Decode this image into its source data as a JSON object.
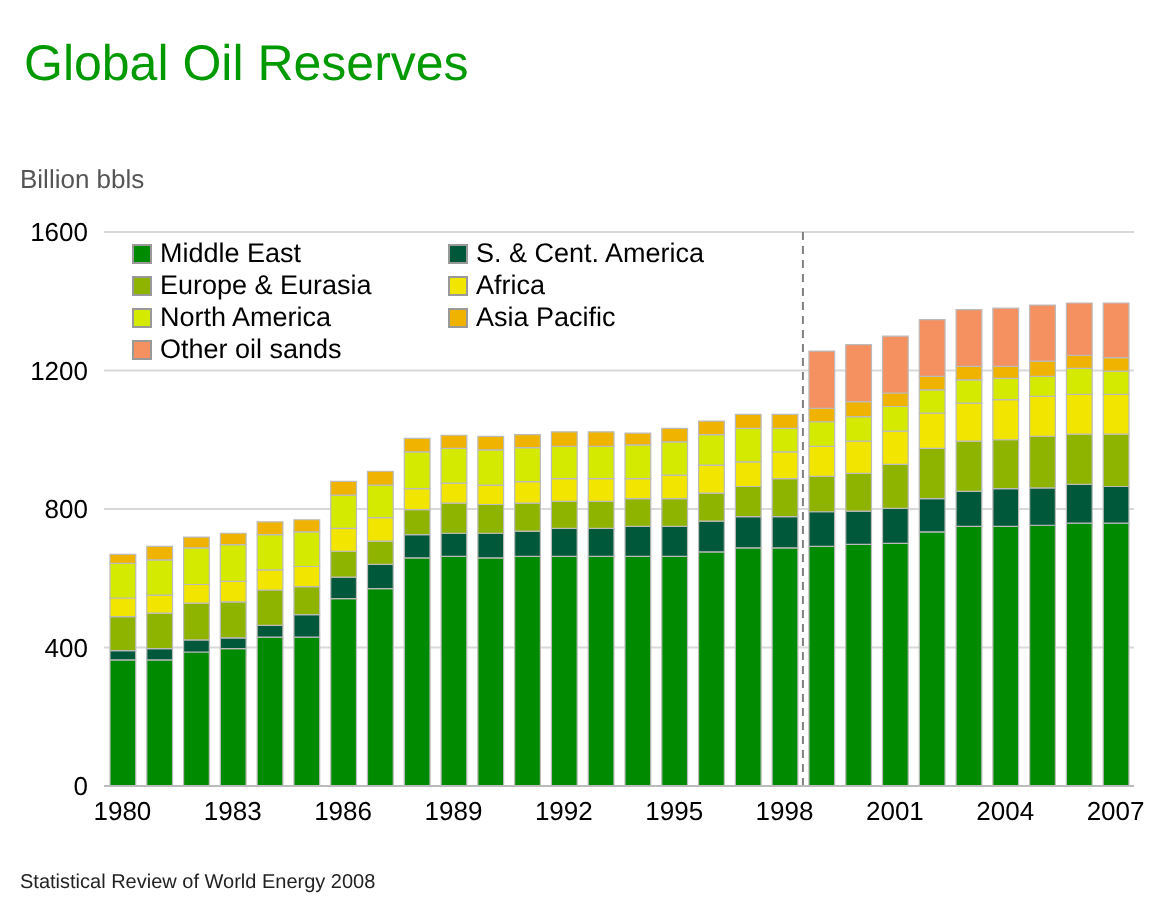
{
  "chart_data": {
    "type": "bar",
    "title": "Global Oil Reserves",
    "ylabel": "Billion bbls",
    "stacked": true,
    "grid": "y",
    "legend": "top left",
    "x": [
      1980,
      1981,
      1982,
      1983,
      1984,
      1985,
      1986,
      1987,
      1988,
      1989,
      1990,
      1991,
      1992,
      1993,
      1994,
      1995,
      1996,
      1997,
      1998,
      1999,
      2000,
      2001,
      2002,
      2003,
      2004,
      2005,
      2006,
      2007
    ],
    "xlim": [
      1979.5,
      2007.5
    ],
    "xticks": [
      1980,
      1983,
      1986,
      1989,
      1992,
      1995,
      1998,
      2001,
      2004,
      2007
    ],
    "ylim": [
      0,
      1600
    ],
    "yticks": [
      0,
      400,
      800,
      1200,
      1600
    ],
    "series": [
      {
        "name": "Middle East",
        "color": "#008a00",
        "values": [
          364,
          364,
          387,
          397,
          430,
          430,
          541,
          570,
          659,
          663,
          659,
          663,
          663,
          663,
          663,
          663,
          676,
          688,
          688,
          692,
          698,
          701,
          734,
          750,
          750,
          753,
          759,
          759
        ]
      },
      {
        "name": "S. & Cent. America",
        "color": "#00583a",
        "values": [
          27,
          33,
          35,
          31,
          34,
          65,
          62,
          70,
          67,
          67,
          71,
          73,
          81,
          81,
          87,
          87,
          89,
          90,
          90,
          100,
          96,
          101,
          96,
          101,
          109,
          108,
          112,
          106
        ]
      },
      {
        "name": "Europe & Eurasia",
        "color": "#8fb400",
        "values": [
          98,
          102,
          106,
          104,
          102,
          81,
          75,
          67,
          72,
          87,
          83,
          81,
          78,
          78,
          80,
          80,
          81,
          87,
          110,
          102,
          109,
          127,
          145,
          145,
          141,
          149,
          145,
          151
        ]
      },
      {
        "name": "Africa",
        "color": "#f2e600",
        "values": [
          54,
          52,
          54,
          59,
          58,
          58,
          66,
          68,
          61,
          58,
          56,
          62,
          66,
          66,
          58,
          68,
          81,
          71,
          77,
          87,
          93,
          96,
          102,
          110,
          116,
          115,
          115,
          115
        ]
      },
      {
        "name": "North America",
        "color": "#d4ea00",
        "values": [
          100,
          102,
          106,
          106,
          102,
          100,
          96,
          94,
          106,
          100,
          102,
          98,
          93,
          93,
          97,
          96,
          88,
          97,
          68,
          71,
          71,
          71,
          67,
          67,
          61,
          58,
          75,
          67
        ]
      },
      {
        "name": "Asia Pacific",
        "color": "#f0b400",
        "values": [
          26,
          39,
          31,
          33,
          37,
          35,
          40,
          40,
          39,
          38,
          39,
          38,
          42,
          42,
          34,
          39,
          39,
          40,
          40,
          39,
          43,
          39,
          39,
          39,
          35,
          44,
          38,
          39
        ]
      },
      {
        "name": "Other oil sands",
        "color": "#f59060",
        "values": [
          null,
          null,
          null,
          null,
          null,
          null,
          null,
          null,
          null,
          null,
          null,
          null,
          null,
          null,
          null,
          null,
          null,
          null,
          null,
          165,
          165,
          164,
          164,
          164,
          168,
          162,
          151,
          158
        ]
      }
    ],
    "ref_lines": [
      {
        "axis": "x",
        "value": 1998.5,
        "color": "#808080",
        "line_style": "dashed"
      }
    ],
    "annotations": [
      "Statistical Review of World Energy 2008"
    ]
  }
}
